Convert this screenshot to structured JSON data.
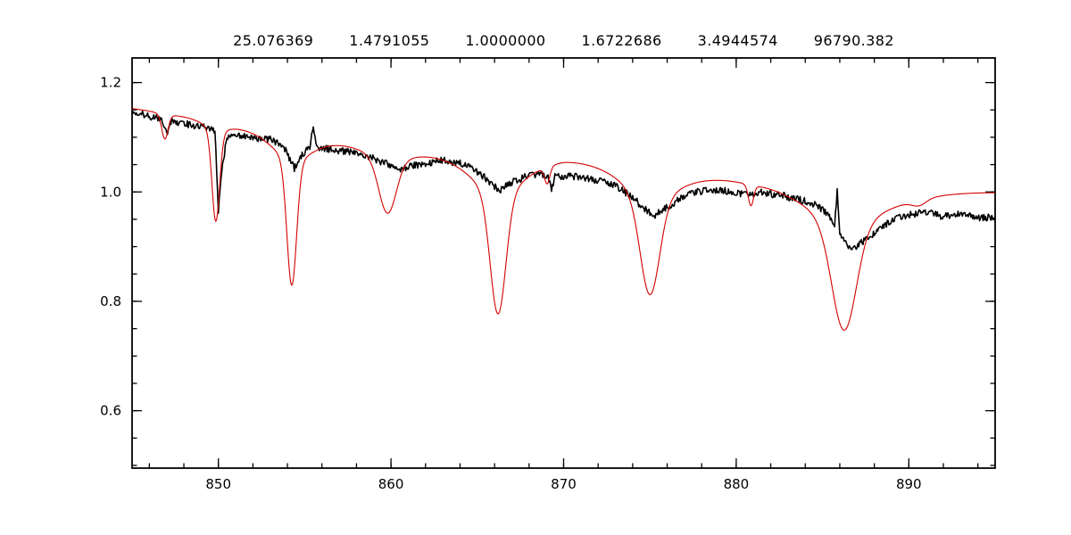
{
  "page": {
    "background": "#ffffff",
    "description": "Stellar spectrum fit plot: black noisy observed spectrum with red synthetic model overlay (Ca II triplet and Paschen lines region)"
  },
  "chart_data": {
    "type": "line",
    "title_values": [
      "25.076369",
      "1.4791055",
      "1.0000000",
      "1.6722686",
      "3.4944574",
      "96790.382"
    ],
    "xlabel": "",
    "ylabel": "",
    "xlim": [
      845,
      895
    ],
    "ylim": [
      0.495,
      1.245
    ],
    "x_major_ticks": [
      850,
      860,
      870,
      880,
      890
    ],
    "x_tick_labels": [
      "850",
      "860",
      "870",
      "880",
      "890"
    ],
    "x_minor_step": 2,
    "y_major_ticks": [
      0.6,
      0.8,
      1.0,
      1.2
    ],
    "y_tick_labels": [
      "0.6",
      "0.8",
      "1.0",
      "1.2"
    ],
    "y_minor_step": 0.05,
    "grid": false,
    "legend": "none",
    "axis_color": "#000000",
    "frame_line_width": 1.8,
    "tick_line_width": 1.3,
    "series": [
      {
        "name": "observed-spectrum",
        "color": "#000000",
        "style": "noisy-line",
        "line_width": 1.6,
        "noise_amplitude": 0.0065,
        "sample_step": 0.05,
        "points": [
          [
            845.0,
            1.148
          ],
          [
            845.5,
            1.143
          ],
          [
            846.0,
            1.138
          ],
          [
            846.7,
            1.133
          ],
          [
            847.0,
            1.107
          ],
          [
            847.3,
            1.13
          ],
          [
            848.0,
            1.125
          ],
          [
            849.0,
            1.12
          ],
          [
            849.8,
            1.112
          ],
          [
            850.0,
            0.965
          ],
          [
            850.2,
            1.04
          ],
          [
            850.5,
            1.1
          ],
          [
            851.0,
            1.103
          ],
          [
            852.0,
            1.1
          ],
          [
            853.0,
            1.096
          ],
          [
            853.8,
            1.083
          ],
          [
            854.4,
            1.042
          ],
          [
            854.9,
            1.07
          ],
          [
            855.3,
            1.082
          ],
          [
            855.5,
            1.122
          ],
          [
            855.7,
            1.082
          ],
          [
            856.5,
            1.078
          ],
          [
            857.5,
            1.073
          ],
          [
            858.5,
            1.068
          ],
          [
            859.2,
            1.058
          ],
          [
            860.0,
            1.048
          ],
          [
            860.6,
            1.04
          ],
          [
            861.2,
            1.048
          ],
          [
            862.0,
            1.052
          ],
          [
            863.0,
            1.058
          ],
          [
            864.0,
            1.052
          ],
          [
            864.8,
            1.042
          ],
          [
            865.5,
            1.025
          ],
          [
            866.3,
            1.002
          ],
          [
            867.0,
            1.018
          ],
          [
            867.8,
            1.028
          ],
          [
            868.6,
            1.032
          ],
          [
            869.1,
            1.028
          ],
          [
            869.3,
            1.007
          ],
          [
            869.5,
            1.028
          ],
          [
            870.3,
            1.03
          ],
          [
            871.0,
            1.026
          ],
          [
            872.0,
            1.02
          ],
          [
            873.0,
            1.012
          ],
          [
            874.0,
            0.99
          ],
          [
            874.7,
            0.968
          ],
          [
            875.3,
            0.958
          ],
          [
            876.0,
            0.972
          ],
          [
            877.0,
            0.992
          ],
          [
            878.0,
            1.002
          ],
          [
            879.0,
            1.004
          ],
          [
            880.0,
            0.999
          ],
          [
            880.8,
            0.994
          ],
          [
            881.5,
            0.999
          ],
          [
            882.5,
            0.994
          ],
          [
            883.5,
            0.988
          ],
          [
            884.5,
            0.978
          ],
          [
            885.2,
            0.962
          ],
          [
            885.7,
            0.94
          ],
          [
            885.85,
            1.002
          ],
          [
            886.0,
            0.925
          ],
          [
            886.5,
            0.897
          ],
          [
            887.0,
            0.901
          ],
          [
            887.6,
            0.916
          ],
          [
            888.2,
            0.93
          ],
          [
            889.0,
            0.948
          ],
          [
            890.0,
            0.959
          ],
          [
            891.0,
            0.963
          ],
          [
            892.0,
            0.955
          ],
          [
            893.0,
            0.961
          ],
          [
            894.0,
            0.951
          ],
          [
            895.0,
            0.956
          ]
        ]
      },
      {
        "name": "model-spectrum",
        "color": "#d40000",
        "style": "smooth-line",
        "line_width": 1.1,
        "sample_step": 0.05,
        "continuum_points": [
          [
            845,
            1.158
          ],
          [
            850,
            1.143
          ],
          [
            855,
            1.128
          ],
          [
            860,
            1.118
          ],
          [
            865,
            1.1
          ],
          [
            870,
            1.094
          ],
          [
            875,
            1.07
          ],
          [
            880,
            1.05
          ],
          [
            885,
            1.035
          ],
          [
            890,
            1.02
          ],
          [
            895,
            1.01
          ]
        ],
        "absorption_lines": [
          {
            "center": 846.9,
            "depth": 0.048,
            "gauss_width": 0.18,
            "lorentz_width": 0.5,
            "lorentz_frac": 0.1
          },
          {
            "center": 849.85,
            "depth": 0.185,
            "gauss_width": 0.22,
            "lorentz_width": 0.8,
            "lorentz_frac": 0.12
          },
          {
            "center": 854.25,
            "depth": 0.29,
            "gauss_width": 0.28,
            "lorentz_width": 1.6,
            "lorentz_frac": 0.22
          },
          {
            "center": 859.8,
            "depth": 0.14,
            "gauss_width": 0.5,
            "lorentz_width": 2.2,
            "lorentz_frac": 0.3
          },
          {
            "center": 866.2,
            "depth": 0.31,
            "gauss_width": 0.45,
            "lorentz_width": 2.2,
            "lorentz_frac": 0.3
          },
          {
            "center": 869.05,
            "depth": 0.032,
            "gauss_width": 0.15,
            "lorentz_width": 0.4,
            "lorentz_frac": 0.1
          },
          {
            "center": 875.0,
            "depth": 0.245,
            "gauss_width": 0.55,
            "lorentz_width": 2.0,
            "lorentz_frac": 0.32
          },
          {
            "center": 880.85,
            "depth": 0.04,
            "gauss_width": 0.15,
            "lorentz_width": 0.4,
            "lorentz_frac": 0.1
          },
          {
            "center": 886.25,
            "depth": 0.28,
            "gauss_width": 0.7,
            "lorentz_width": 3.0,
            "lorentz_frac": 0.33
          },
          {
            "center": 890.6,
            "depth": 0.012,
            "gauss_width": 0.4,
            "lorentz_width": 1.0,
            "lorentz_frac": 0.2
          }
        ]
      }
    ]
  }
}
